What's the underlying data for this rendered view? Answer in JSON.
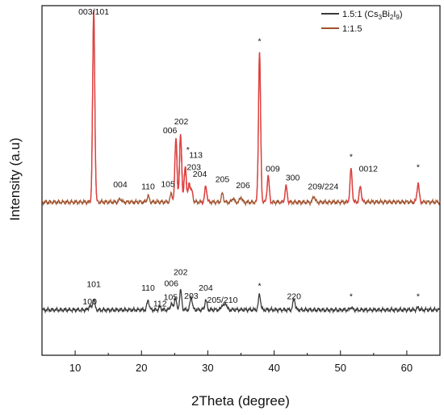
{
  "chart_data": {
    "type": "line",
    "xlabel": "2Theta (degree)",
    "ylabel": "Intensity (a.u)",
    "xlim": [
      5,
      65
    ],
    "xticks": [
      10,
      20,
      30,
      40,
      50,
      60
    ],
    "ylim": [
      0,
      10
    ],
    "yticks_shown": false,
    "grid": false,
    "legend_position": "top-right",
    "legend": [
      {
        "id": "black",
        "text_main": "1.5:1 (Cs",
        "sub1": "3",
        "text_mid": "Bi",
        "sub2": "2",
        "text_mid2": "I",
        "sub3": "9",
        "text_end": ")",
        "color": "#3a3a3a"
      },
      {
        "id": "red",
        "text_main": "1:1.5",
        "color": "#a0522d"
      }
    ],
    "series": [
      {
        "name": "1.5:1 (Cs3Bi2I9)",
        "color": "#3a3a3a",
        "baseline": 1.3,
        "peaks": [
          [
            12.2,
            0.12
          ],
          [
            12.8,
            0.32
          ],
          [
            21.0,
            0.28
          ],
          [
            22.8,
            0.08
          ],
          [
            24.5,
            0.18
          ],
          [
            25.1,
            0.35
          ],
          [
            25.9,
            0.55
          ],
          [
            27.5,
            0.38
          ],
          [
            29.7,
            0.28
          ],
          [
            32.2,
            0.15
          ],
          [
            32.7,
            0.2
          ],
          [
            37.8,
            0.45
          ],
          [
            43.0,
            0.32
          ],
          [
            51.6,
            0.08
          ],
          [
            61.7,
            0.06
          ]
        ],
        "labels": [
          {
            "text": "100",
            "x": 12.2,
            "y": 1.45
          },
          {
            "text": "101",
            "x": 12.8,
            "y": 1.95
          },
          {
            "text": "110",
            "x": 21.0,
            "y": 1.85
          },
          {
            "text": "112",
            "x": 22.8,
            "y": 1.4
          },
          {
            "text": "006",
            "x": 24.5,
            "y": 1.98
          },
          {
            "text": "105",
            "x": 24.4,
            "y": 1.58
          },
          {
            "text": "202",
            "x": 25.9,
            "y": 2.3
          },
          {
            "text": "203",
            "x": 27.5,
            "y": 1.62
          },
          {
            "text": "204",
            "x": 29.7,
            "y": 1.85
          },
          {
            "text": "205/210",
            "x": 32.2,
            "y": 1.5
          },
          {
            "text": "*",
            "x": 37.8,
            "y": 1.9
          },
          {
            "text": "220",
            "x": 43.0,
            "y": 1.6
          },
          {
            "text": "*",
            "x": 51.6,
            "y": 1.6
          },
          {
            "text": "*",
            "x": 61.7,
            "y": 1.6
          }
        ]
      },
      {
        "name": "1:1.5",
        "color": "#a0522d",
        "peak_color": "#e04040",
        "baseline": 4.38,
        "peaks": [
          [
            12.8,
            5.5
          ],
          [
            16.8,
            0.1
          ],
          [
            21.0,
            0.18
          ],
          [
            24.5,
            0.25
          ],
          [
            25.2,
            1.85
          ],
          [
            25.9,
            1.95
          ],
          [
            26.6,
            1.05
          ],
          [
            27.2,
            0.55
          ],
          [
            27.6,
            0.3
          ],
          [
            29.7,
            0.45
          ],
          [
            32.2,
            0.25
          ],
          [
            33.8,
            0.12
          ],
          [
            35.0,
            0.15
          ],
          [
            37.8,
            4.3
          ],
          [
            39.1,
            0.75
          ],
          [
            41.8,
            0.45
          ],
          [
            46.0,
            0.18
          ],
          [
            51.6,
            0.95
          ],
          [
            53.0,
            0.45
          ],
          [
            61.7,
            0.55
          ]
        ],
        "labels": [
          {
            "text": "003/101",
            "x": 12.8,
            "y": 9.75
          },
          {
            "text": "004",
            "x": 16.8,
            "y": 4.8
          },
          {
            "text": "110",
            "x": 21.0,
            "y": 4.75
          },
          {
            "text": "105",
            "x": 24.0,
            "y": 4.82
          },
          {
            "text": "006",
            "x": 24.3,
            "y": 6.35
          },
          {
            "text": "202",
            "x": 26.0,
            "y": 6.6
          },
          {
            "text": "*",
            "x": 27.0,
            "y": 5.8
          },
          {
            "text": "113",
            "x": 28.2,
            "y": 5.65
          },
          {
            "text": "203",
            "x": 27.9,
            "y": 5.3
          },
          {
            "text": "204",
            "x": 28.8,
            "y": 5.1
          },
          {
            "text": "205",
            "x": 32.2,
            "y": 4.95
          },
          {
            "text": "206",
            "x": 35.3,
            "y": 4.78
          },
          {
            "text": "*",
            "x": 37.8,
            "y": 8.9
          },
          {
            "text": "009",
            "x": 39.8,
            "y": 5.25
          },
          {
            "text": "300",
            "x": 42.8,
            "y": 5.0
          },
          {
            "text": "209/224",
            "x": 47.4,
            "y": 4.75
          },
          {
            "text": "*",
            "x": 51.6,
            "y": 5.6
          },
          {
            "text": "0012",
            "x": 54.2,
            "y": 5.25
          },
          {
            "text": "*",
            "x": 61.7,
            "y": 5.3
          }
        ]
      }
    ]
  }
}
